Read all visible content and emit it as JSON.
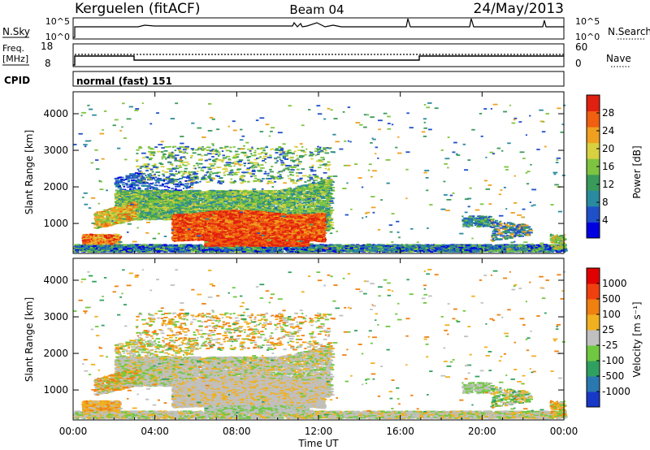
{
  "header": {
    "station": "Kerguelen (fitACF)",
    "beam": "Beam 04",
    "date": "24/May/2013"
  },
  "nsky_panel": {
    "label": "N.Sky",
    "left_ticks": [
      "10^5",
      "10^0"
    ],
    "right_ticks": [
      "10^5",
      "10^0"
    ],
    "right_label": "N.Search"
  },
  "freq_panel": {
    "label_top": "Freq.",
    "label_units": "[MHz]",
    "left_ticks": [
      "18",
      "8"
    ],
    "right_ticks": [
      "60",
      "0"
    ],
    "right_label": "Nave"
  },
  "cpid_panel": {
    "label": "CPID",
    "value": "normal (fast) 151"
  },
  "chart_data": [
    {
      "type": "heatmap",
      "name": "power",
      "ylabel": "Slant Range [km]",
      "ylim": [
        180,
        4600
      ],
      "yticks": [
        "1000",
        "2000",
        "3000",
        "4000"
      ],
      "colorbar_label": "Power [dB]",
      "colorbar_ticks": [
        "28",
        "24",
        "20",
        "16",
        "12",
        "8",
        "4"
      ],
      "colors": [
        "#0000e0",
        "#1f50c8",
        "#2a8aa0",
        "#3a9a5a",
        "#7ec440",
        "#d8d040",
        "#f0a020",
        "#f06010",
        "#e02010"
      ]
    },
    {
      "type": "heatmap",
      "name": "velocity",
      "ylabel": "Slant Range [km]",
      "xlabel": "Time UT",
      "ylim": [
        180,
        4600
      ],
      "yticks": [
        "1000",
        "2000",
        "3000",
        "4000"
      ],
      "xticks": [
        "00:00",
        "04:00",
        "08:00",
        "12:00",
        "16:00",
        "20:00",
        "00:00"
      ],
      "colorbar_label": "Velocity [m s⁻¹]",
      "colorbar_ticks": [
        "1000",
        "500",
        "100",
        "25",
        "-25",
        "-100",
        "-500",
        "-1000"
      ],
      "colors": [
        "#1838c8",
        "#2a78b0",
        "#30a060",
        "#70c840",
        "#c0c0c0",
        "#f0b020",
        "#f08010",
        "#f04010",
        "#e00000"
      ]
    }
  ]
}
